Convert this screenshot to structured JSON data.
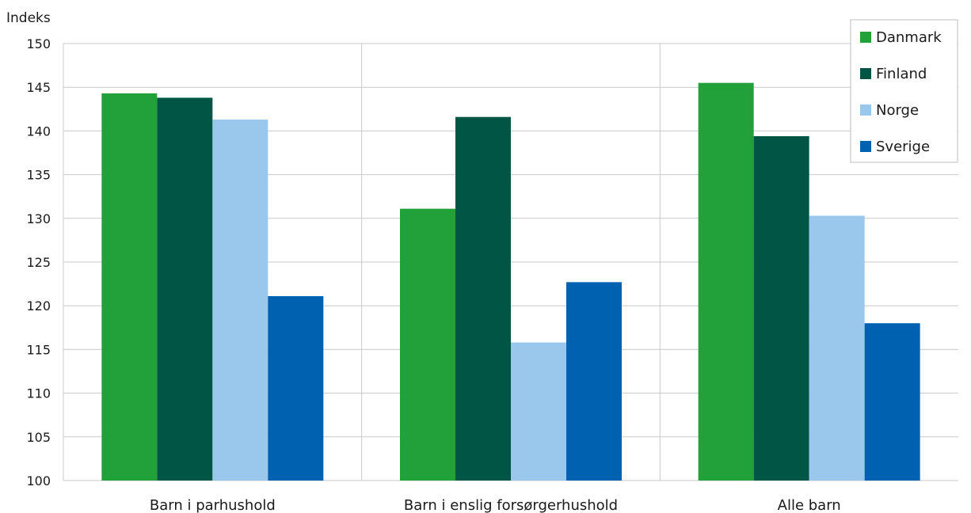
{
  "chart_data": {
    "type": "bar",
    "title": "",
    "xlabel": "",
    "ylabel": "Indeks",
    "ylim": [
      100,
      150
    ],
    "yticks": [
      100,
      105,
      110,
      115,
      120,
      125,
      130,
      135,
      140,
      145,
      150
    ],
    "grid": true,
    "legend_position": "top-right",
    "categories": [
      "Barn i parhushold",
      "Barn i enslig forsørgerhushold",
      "Alle barn"
    ],
    "series": [
      {
        "name": "Danmark",
        "color": "#22a03a",
        "values": [
          144.3,
          131.1,
          145.5
        ]
      },
      {
        "name": "Finland",
        "color": "#005544",
        "values": [
          143.8,
          141.6,
          139.4
        ]
      },
      {
        "name": "Norge",
        "color": "#9ac8ec",
        "values": [
          141.3,
          115.8,
          130.3
        ]
      },
      {
        "name": "Sverige",
        "color": "#0061b0",
        "values": [
          121.1,
          122.7,
          118.0
        ]
      }
    ]
  }
}
